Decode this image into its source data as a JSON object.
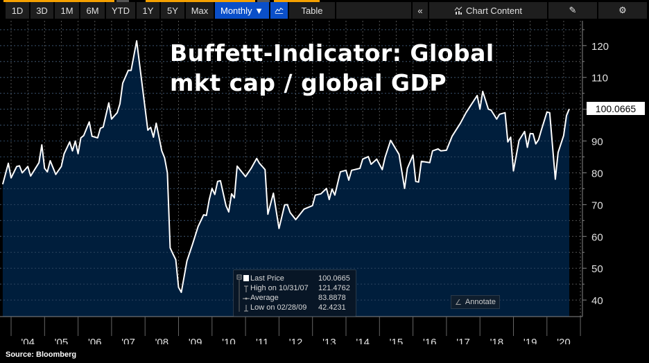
{
  "toolbar": {
    "ranges": [
      "1D",
      "3D",
      "1M",
      "6M",
      "YTD",
      "1Y",
      "5Y",
      "Max"
    ],
    "frequency": "Monthly ▼",
    "table_label": "Table",
    "collapse_icon": "double-chevron-left-icon",
    "chart_content_label": "Chart Content",
    "edit_icon": "edit-icon",
    "settings_icon": "gear-icon"
  },
  "legend": {
    "rows": [
      {
        "label": "Last Price",
        "value": "100.0665"
      },
      {
        "label": "High on 10/31/07",
        "value": "121.4762"
      },
      {
        "label": "Average",
        "value": "83.8878"
      },
      {
        "label": "Low on 02/28/09",
        "value": "42.4231"
      }
    ]
  },
  "annotate_label": "Annotate",
  "last_price_badge": "100.0665",
  "source": "Source:  Bloomberg",
  "colors": {
    "line": "#ffffff",
    "fill": "#001e3c",
    "background": "#000000",
    "accent": "#0a4fc9",
    "orange": "#f5a000"
  },
  "chart_data": {
    "type": "area",
    "title": "Buffett-Indicator: Global mkt cap / global GDP",
    "title_lines": [
      "Buffett-Indicator: Global",
      "mkt cap / global GDP"
    ],
    "xlabel": "",
    "ylabel": "",
    "x_tick_labels": [
      "'04",
      "'05",
      "'06",
      "'07",
      "'08",
      "'09",
      "'10",
      "'11",
      "'12",
      "'13",
      "'14",
      "'15",
      "'16",
      "'17",
      "'18",
      "'19",
      "'20"
    ],
    "y_ticks": [
      40,
      50,
      60,
      70,
      80,
      90,
      100,
      110,
      120
    ],
    "ylim": [
      34.8,
      127.8
    ],
    "xlim": [
      "2003-10",
      "2020-12"
    ],
    "y_axis_side": "right",
    "grid": true,
    "series": [
      {
        "points": [
          [
            "2003-10",
            76.4
          ],
          [
            "2003-12",
            83
          ],
          [
            "2004-01",
            78.4
          ],
          [
            "2004-03",
            82
          ],
          [
            "2004-04",
            82.2
          ],
          [
            "2004-05",
            80
          ],
          [
            "2004-07",
            82
          ],
          [
            "2004-08",
            79
          ],
          [
            "2004-11",
            83.2
          ],
          [
            "2004-12",
            88.8
          ],
          [
            "2005-01",
            81.4
          ],
          [
            "2005-02",
            80.3
          ],
          [
            "2005-03",
            83.8
          ],
          [
            "2005-05",
            79.5
          ],
          [
            "2005-07",
            82
          ],
          [
            "2005-08",
            86
          ],
          [
            "2005-10",
            89.7
          ],
          [
            "2005-11",
            86.9
          ],
          [
            "2005-12",
            90
          ],
          [
            "2006-01",
            86
          ],
          [
            "2006-02",
            91
          ],
          [
            "2006-03",
            91.7
          ],
          [
            "2006-05",
            96
          ],
          [
            "2006-06",
            91.5
          ],
          [
            "2006-08",
            91
          ],
          [
            "2006-09",
            94
          ],
          [
            "2006-10",
            94.4
          ],
          [
            "2006-12",
            102
          ],
          [
            "2007-01",
            96.9
          ],
          [
            "2007-03",
            98.9
          ],
          [
            "2007-04",
            101.7
          ],
          [
            "2007-05",
            108.2
          ],
          [
            "2007-07",
            112.2
          ],
          [
            "2007-08",
            112.2
          ],
          [
            "2007-10",
            121.48
          ],
          [
            "2008-02",
            93.4
          ],
          [
            "2008-03",
            94.3
          ],
          [
            "2008-04",
            91.2
          ],
          [
            "2008-05",
            95.6
          ],
          [
            "2008-07",
            86.9
          ],
          [
            "2008-08",
            84.7
          ],
          [
            "2008-09",
            80
          ],
          [
            "2008-10",
            56.4
          ],
          [
            "2008-11",
            54.5
          ],
          [
            "2008-12",
            52.7
          ],
          [
            "2009-01",
            44
          ],
          [
            "2009-02",
            42.42
          ],
          [
            "2009-04",
            52.3
          ],
          [
            "2009-06",
            57.5
          ],
          [
            "2009-08",
            63.1
          ],
          [
            "2009-10",
            66.8
          ],
          [
            "2009-11",
            66.6
          ],
          [
            "2009-12",
            71.6
          ],
          [
            "2010-01",
            75.1
          ],
          [
            "2010-02",
            73.2
          ],
          [
            "2010-03",
            77.3
          ],
          [
            "2010-04",
            77.5
          ],
          [
            "2010-06",
            69.7
          ],
          [
            "2010-07",
            67.7
          ],
          [
            "2010-08",
            73.4
          ],
          [
            "2010-09",
            72.1
          ],
          [
            "2010-10",
            82.1
          ],
          [
            "2011-01",
            78.8
          ],
          [
            "2011-03",
            81.4
          ],
          [
            "2011-05",
            84.5
          ],
          [
            "2011-06",
            83
          ],
          [
            "2011-08",
            81
          ],
          [
            "2011-09",
            67
          ],
          [
            "2011-11",
            73.6
          ],
          [
            "2012-01",
            62.5
          ],
          [
            "2012-03",
            69.9
          ],
          [
            "2012-04",
            70
          ],
          [
            "2012-05",
            67.5
          ],
          [
            "2012-07",
            65.3
          ],
          [
            "2012-10",
            68.6
          ],
          [
            "2013-01",
            69.7
          ],
          [
            "2013-02",
            73
          ],
          [
            "2013-04",
            73.4
          ],
          [
            "2013-06",
            75.1
          ],
          [
            "2013-07",
            71.6
          ],
          [
            "2013-08",
            74.9
          ],
          [
            "2013-09",
            73
          ],
          [
            "2013-11",
            80.3
          ],
          [
            "2014-01",
            80.8
          ],
          [
            "2014-02",
            77.7
          ],
          [
            "2014-03",
            80.8
          ],
          [
            "2014-06",
            81.4
          ],
          [
            "2014-07",
            84.3
          ],
          [
            "2014-09",
            85.1
          ],
          [
            "2014-10",
            82.7
          ],
          [
            "2014-12",
            84.3
          ],
          [
            "2015-02",
            81
          ],
          [
            "2015-03",
            84.9
          ],
          [
            "2015-05",
            90.2
          ],
          [
            "2015-08",
            85.8
          ],
          [
            "2015-10",
            75.1
          ],
          [
            "2015-11",
            81.4
          ],
          [
            "2016-01",
            85.6
          ],
          [
            "2016-02",
            77.3
          ],
          [
            "2016-03",
            77.1
          ],
          [
            "2016-04",
            83.6
          ],
          [
            "2016-07",
            83.2
          ],
          [
            "2016-08",
            86.9
          ],
          [
            "2016-10",
            87.5
          ],
          [
            "2016-11",
            86.9
          ],
          [
            "2017-01",
            87.1
          ],
          [
            "2017-03",
            91.5
          ],
          [
            "2017-06",
            95.6
          ],
          [
            "2017-08",
            98.9
          ],
          [
            "2017-12",
            104.3
          ],
          [
            "2018-01",
            100
          ],
          [
            "2018-02",
            105.6
          ],
          [
            "2018-04",
            100
          ],
          [
            "2018-05",
            99.7
          ],
          [
            "2018-07",
            96.9
          ],
          [
            "2018-08",
            98.4
          ],
          [
            "2018-10",
            98.9
          ],
          [
            "2018-11",
            89.7
          ],
          [
            "2018-12",
            91.2
          ],
          [
            "2019-01",
            80.6
          ],
          [
            "2019-03",
            90.2
          ],
          [
            "2019-05",
            93
          ],
          [
            "2019-06",
            88
          ],
          [
            "2019-07",
            92.3
          ],
          [
            "2019-08",
            92.3
          ],
          [
            "2019-09",
            89.1
          ],
          [
            "2019-10",
            90.4
          ],
          [
            "2019-11",
            93.4
          ],
          [
            "2020-01",
            99.1
          ],
          [
            "2020-02",
            98.9
          ],
          [
            "2020-04",
            78
          ],
          [
            "2020-05",
            86.4
          ],
          [
            "2020-07",
            91.7
          ],
          [
            "2020-08",
            98
          ],
          [
            "2020-09",
            100.0665
          ]
        ]
      }
    ]
  }
}
